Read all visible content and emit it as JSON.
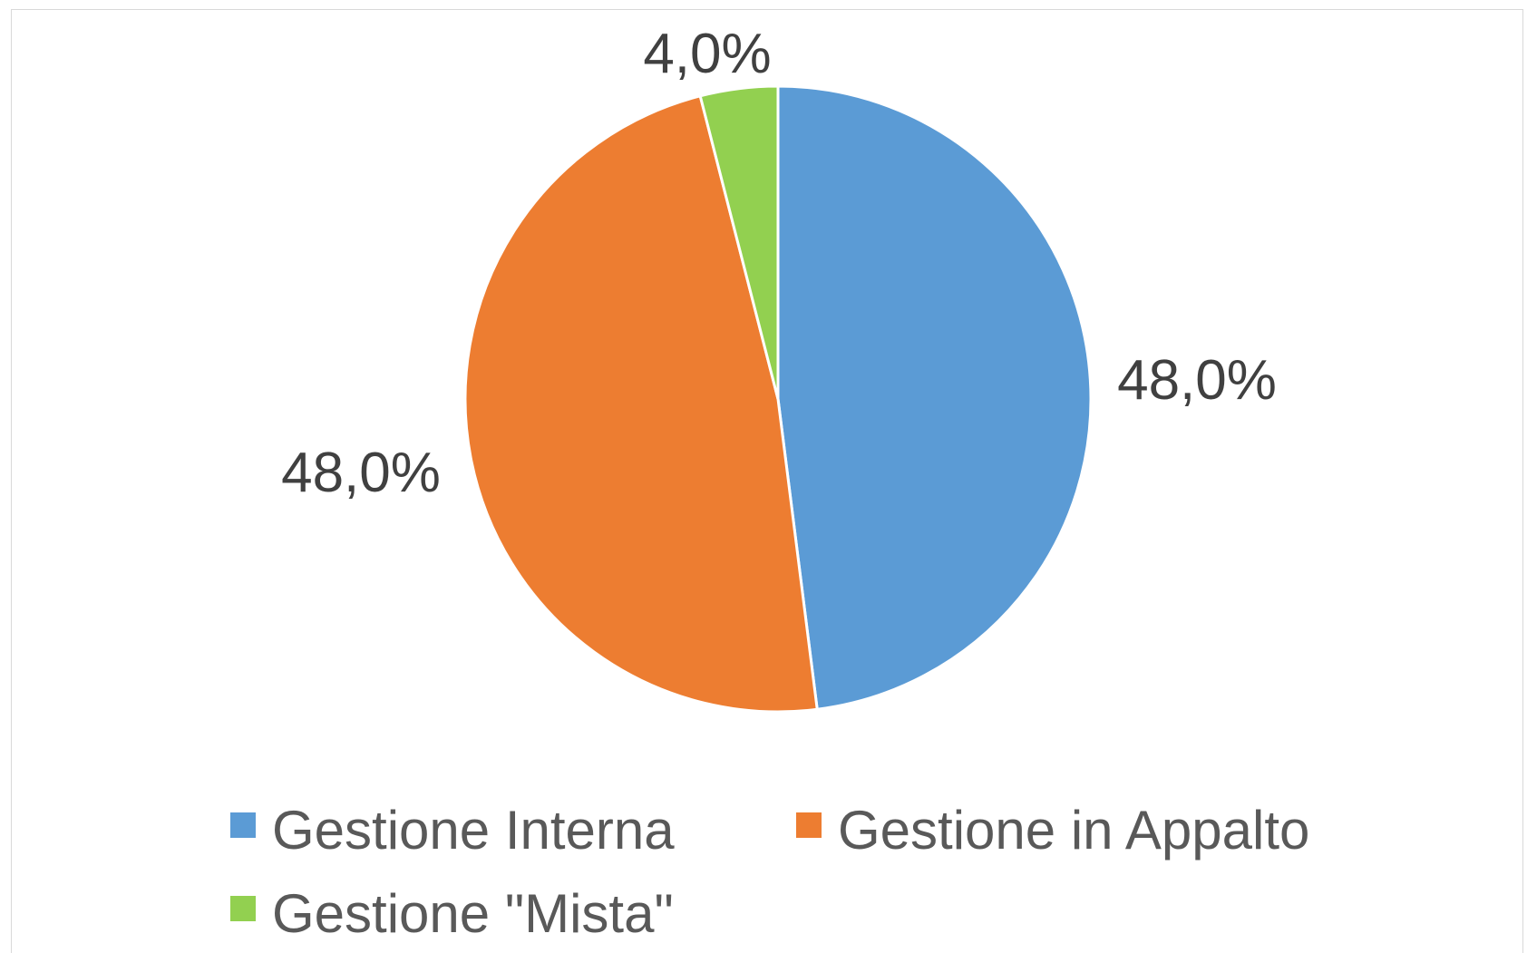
{
  "chart_data": {
    "type": "pie",
    "title": "",
    "slices": [
      {
        "name": "Gestione Interna",
        "value": 48.0,
        "label": "48,0%",
        "color": "#5b9bd5"
      },
      {
        "name": "Gestione in Appalto",
        "value": 48.0,
        "label": "48,0%",
        "color": "#ed7d31"
      },
      {
        "name": "Gestione \"Mista\"",
        "value": 4.0,
        "label": "4,0%",
        "color": "#92d050"
      }
    ],
    "legend_position": "bottom",
    "start_angle_deg": 0,
    "direction": "clockwise",
    "slice_border_color": "#ffffff"
  }
}
